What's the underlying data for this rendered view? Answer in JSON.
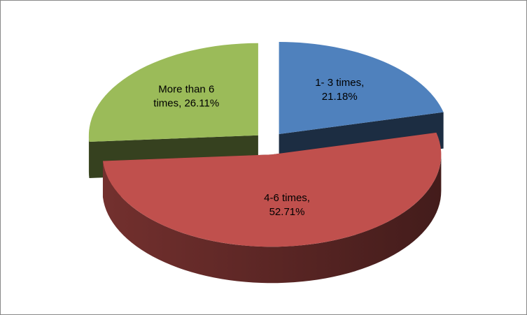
{
  "chart_data": {
    "type": "pie",
    "values": [
      21.18,
      52.71,
      26.11
    ],
    "value_labels": [
      "1- 3 times,\n21.18%",
      "4-6 times,\n52.71%",
      "More than 6\ntimes, 26.11%"
    ],
    "colors": [
      "#4f81bd",
      "#c0504d",
      "#9bbb59"
    ]
  }
}
